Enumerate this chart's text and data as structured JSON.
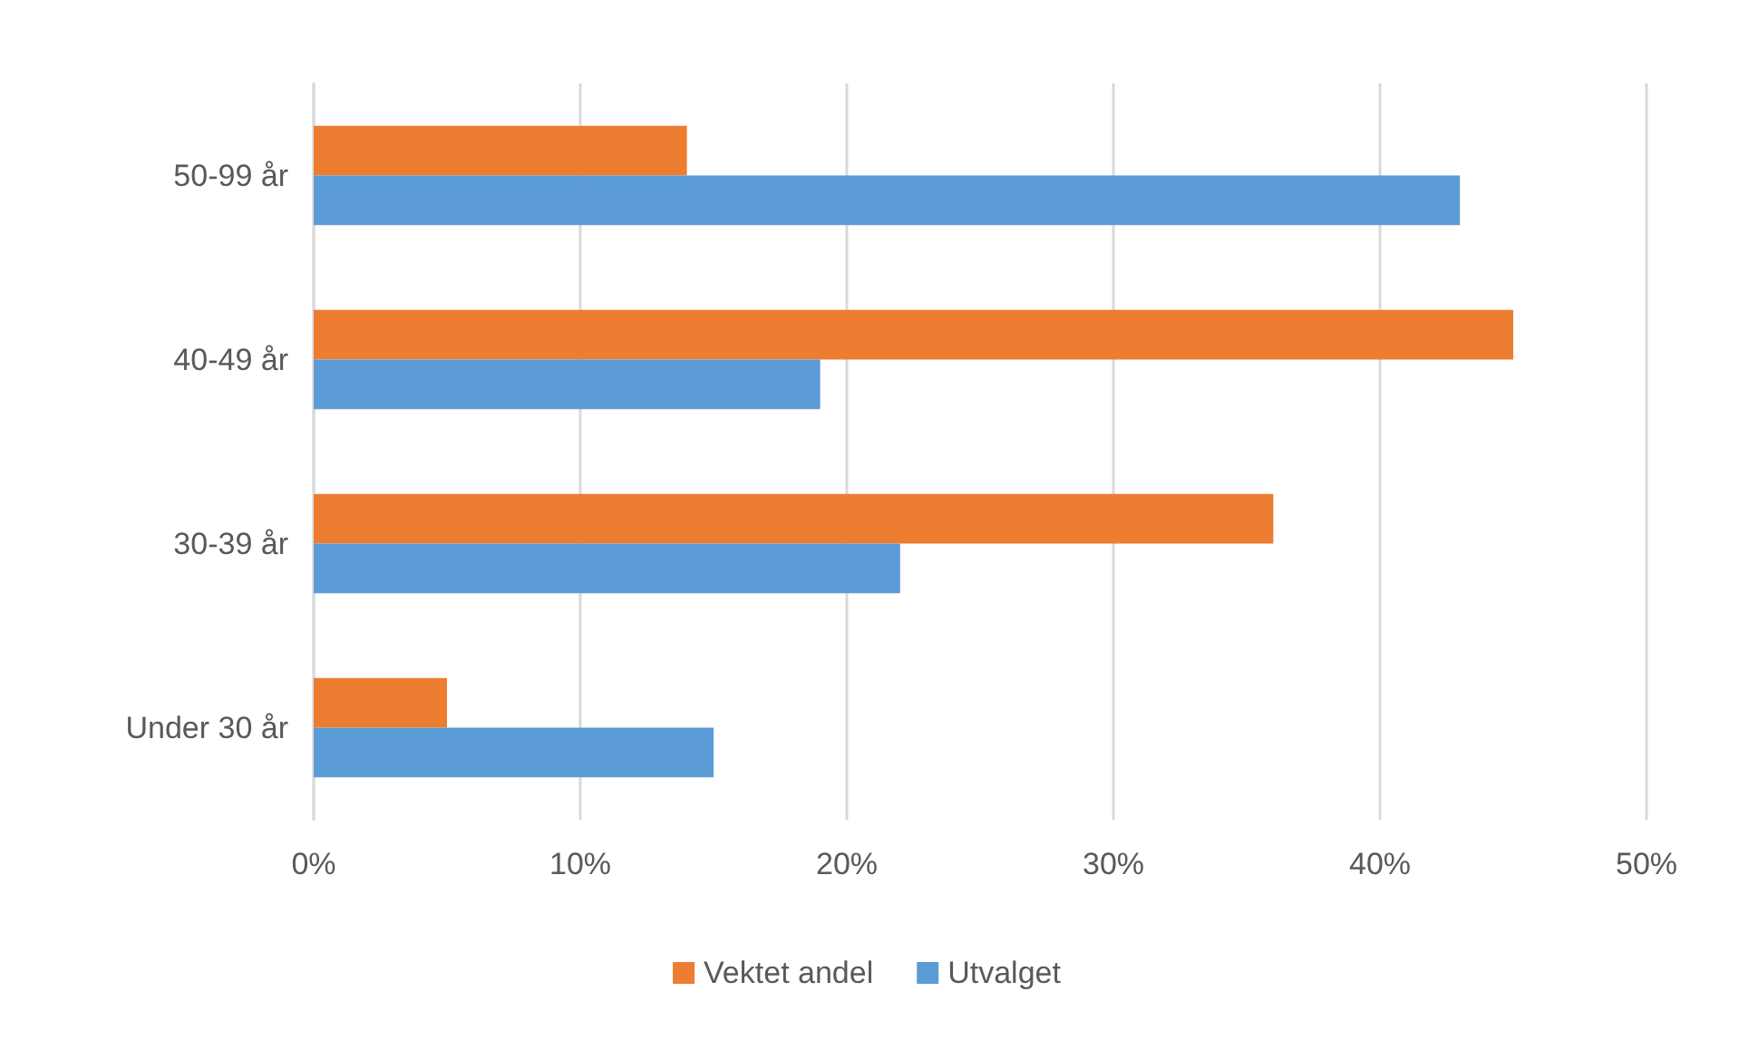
{
  "chart_data": {
    "type": "bar",
    "orientation": "horizontal",
    "categories": [
      "50-99 år",
      "40-49 år",
      "30-39 år",
      "Under 30 år"
    ],
    "series": [
      {
        "name": "Vektet andel",
        "color": "#ed7d31",
        "values": [
          14,
          45,
          36,
          5
        ]
      },
      {
        "name": "Utvalget",
        "color": "#5b9bd5",
        "values": [
          43,
          19,
          22,
          15
        ]
      }
    ],
    "xlim": [
      0,
      50
    ],
    "xticks": [
      {
        "value": 0,
        "label": "0%"
      },
      {
        "value": 10,
        "label": "10%"
      },
      {
        "value": 20,
        "label": "20%"
      },
      {
        "value": 30,
        "label": "30%"
      },
      {
        "value": 40,
        "label": "40%"
      },
      {
        "value": 50,
        "label": "50%"
      }
    ],
    "grid": "x",
    "legend": "bottom"
  }
}
